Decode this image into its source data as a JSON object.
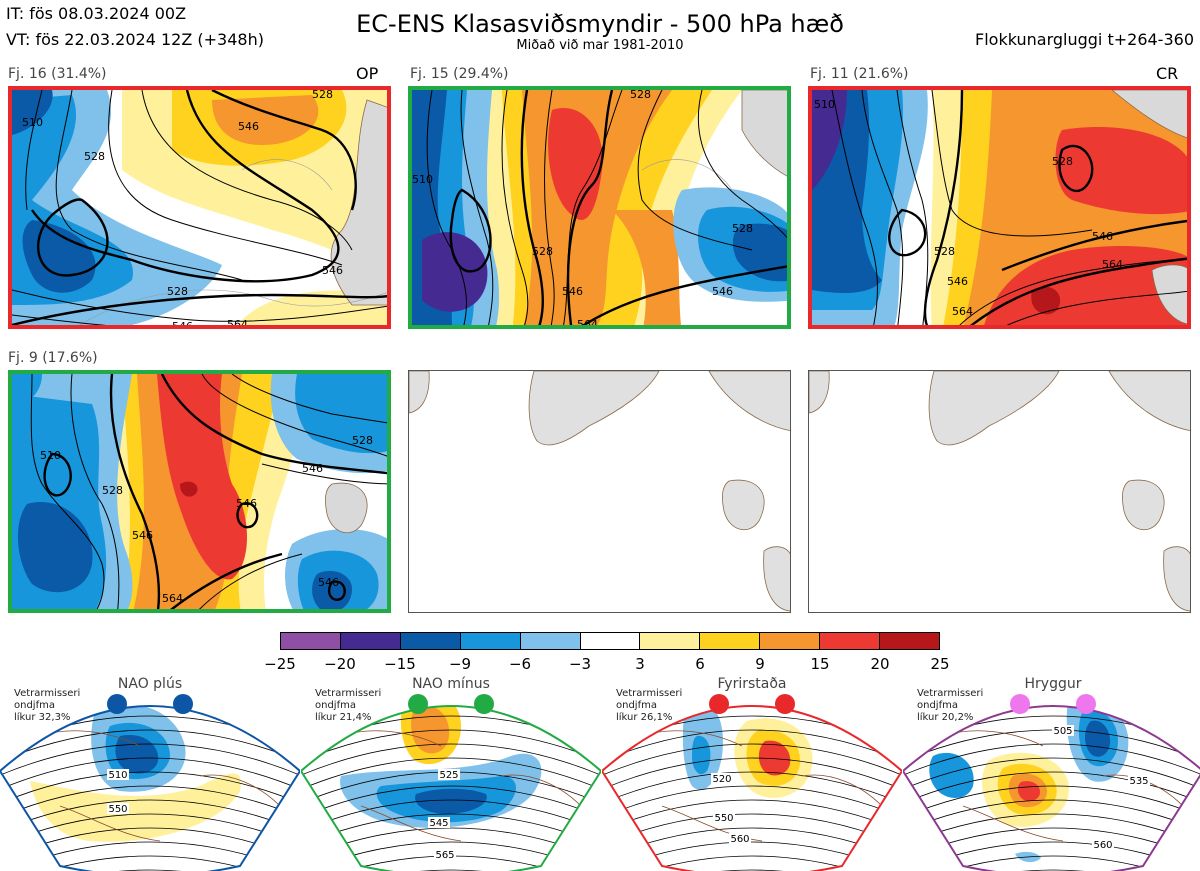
{
  "header": {
    "init_time": "IT: fös 08.03.2024 00Z",
    "valid_time": "VT: fös 22.03.2024 12Z  (+348h)",
    "title": "EC-ENS Klasasviðsmyndir - 500 hPa hæð",
    "subtitle": "Miðað við mar 1981-2010",
    "window": "Flokkunargluggi t+264-360"
  },
  "clusters": [
    {
      "label": "Fj. 16 (31.4%)",
      "tag": "OP",
      "border_color": "#e8282a"
    },
    {
      "label": "Fj. 15 (29.4%)",
      "tag": "",
      "border_color": "#22aa44"
    },
    {
      "label": "Fj. 11 (21.6%)",
      "tag": "CR",
      "border_color": "#e8282a"
    },
    {
      "label": "Fj. 9 (17.6%)",
      "tag": "",
      "border_color": "#22aa44"
    }
  ],
  "contour_labels": {
    "c16": [
      "510",
      "528",
      "546",
      "528",
      "546",
      "528",
      "546",
      "564"
    ],
    "c15": [
      "510",
      "528",
      "546",
      "528",
      "546",
      "528",
      "564"
    ],
    "c11": [
      "510",
      "528",
      "528",
      "546",
      "546",
      "564",
      "564"
    ],
    "c9": [
      "510",
      "528",
      "546",
      "546",
      "528",
      "546",
      "546",
      "564"
    ]
  },
  "colorbar": {
    "colors": [
      "#8e4fa4",
      "#452a92",
      "#0a5aa8",
      "#1896db",
      "#7fc1ea",
      "#ffffff",
      "#fff19c",
      "#ffd21f",
      "#f5962f",
      "#ec3a32",
      "#b5171b"
    ],
    "ticks": [
      "−25",
      "−20",
      "−15",
      "−9",
      "−6",
      "−3",
      "3",
      "6",
      "9",
      "15",
      "20",
      "25"
    ]
  },
  "regimes": [
    {
      "name": "NAO plús",
      "info_1": "Vetrarmisseri",
      "info_2": "ondjfma",
      "info_3": "líkur 32,3%",
      "color": "#0d55a5",
      "dot_color": "#0d55a5",
      "contours": [
        "510",
        "550"
      ]
    },
    {
      "name": "NAO mínus",
      "info_1": "Vetrarmisseri",
      "info_2": "ondjfma",
      "info_3": "líkur 21,4%",
      "color": "#22aa44",
      "dot_color": "#22aa44",
      "contours": [
        "525",
        "545",
        "565"
      ]
    },
    {
      "name": "Fyrirstaða",
      "info_1": "Vetrarmisseri",
      "info_2": "ondjfma",
      "info_3": "líkur 26,1%",
      "color": "#e8282a",
      "dot_color": "#e8282a",
      "contours": [
        "520",
        "550",
        "560"
      ]
    },
    {
      "name": "Hryggur",
      "info_1": "Vetrarmisseri",
      "info_2": "ondjfma",
      "info_3": "líkur 20,2%",
      "color": "#8b3a8f",
      "dot_color": "#ee77ee",
      "contours": [
        "505",
        "535",
        "560"
      ]
    }
  ]
}
